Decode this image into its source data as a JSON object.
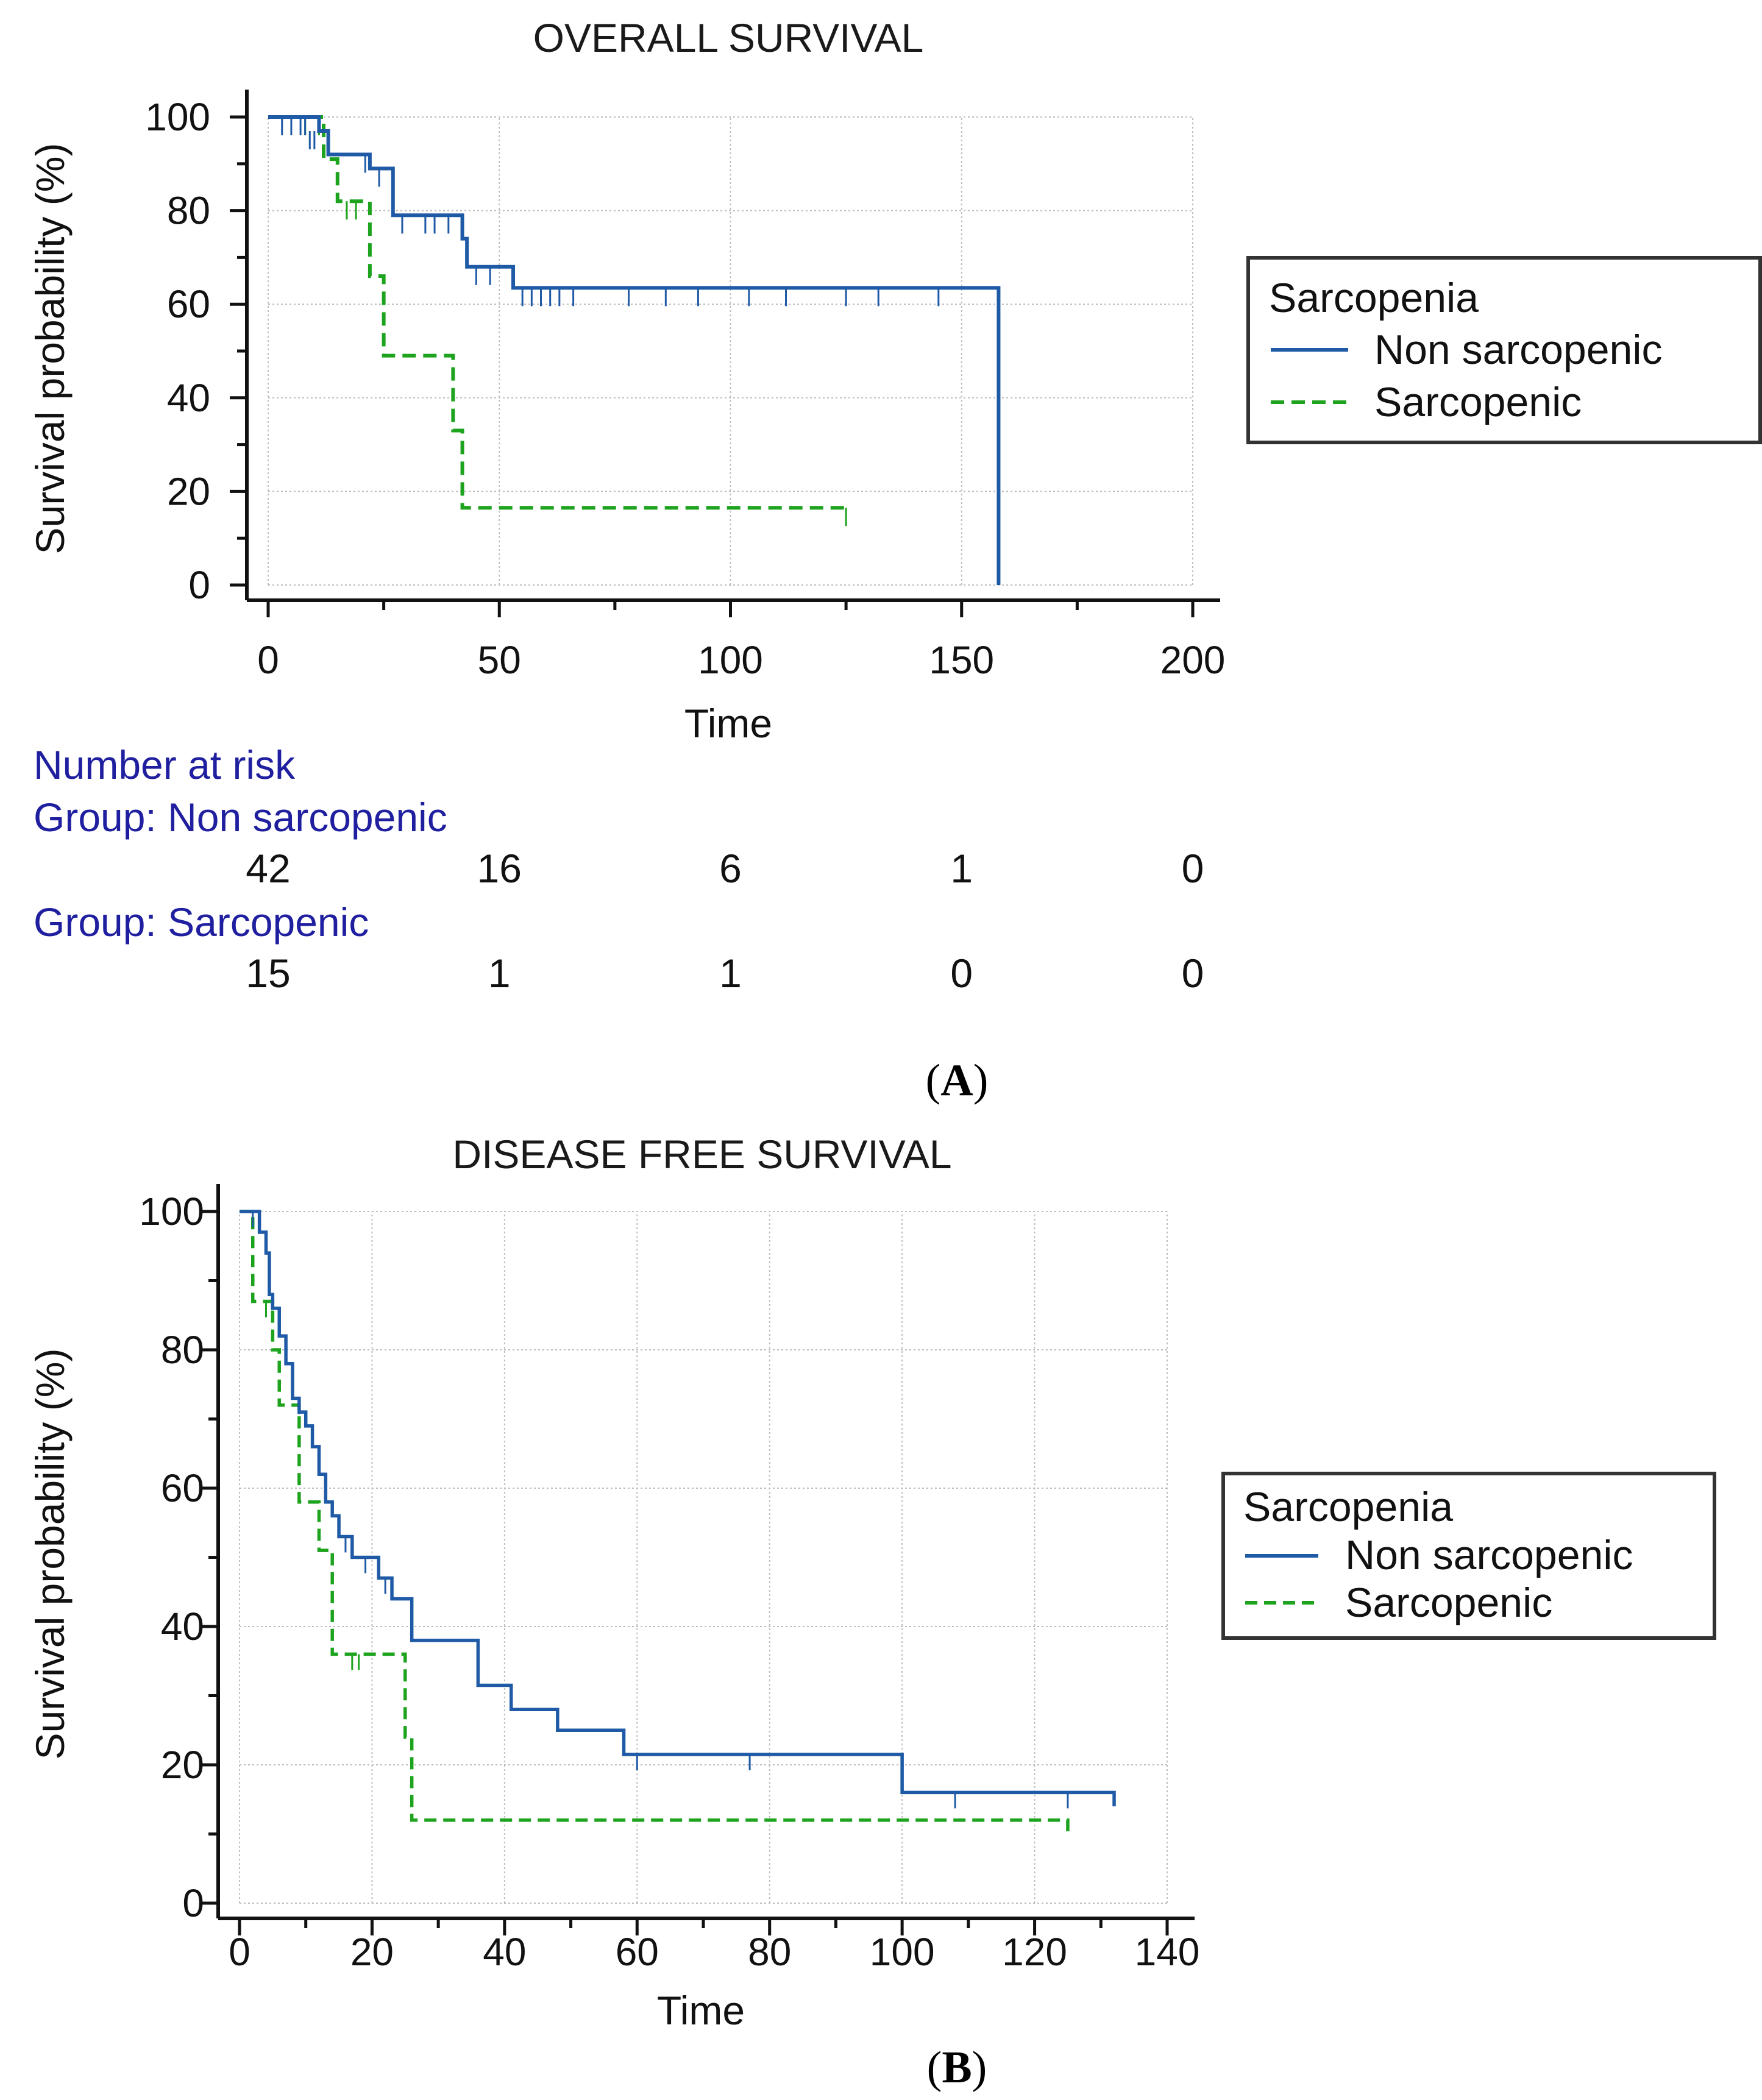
{
  "colors": {
    "non_sarcopenic": "#1f5aa6",
    "sarcopenic": "#1ea31e",
    "grid": "#bdbdbd",
    "axis": "#111111",
    "risk_text": "#1f1fa0"
  },
  "chart_data": [
    {
      "type": "line",
      "panel": "A",
      "title": "OVERALL SURVIVAL",
      "xlabel": "Time",
      "ylabel": "Survival probability (%)",
      "xlim": [
        0,
        200
      ],
      "ylim": [
        0,
        100
      ],
      "xticks": [
        0,
        50,
        100,
        150,
        200
      ],
      "yticks": [
        0,
        20,
        40,
        60,
        80,
        100
      ],
      "grid": true,
      "legend": {
        "title": "Sarcopenia",
        "position": "right",
        "entries": [
          "Non sarcopenic",
          "Sarcopenic"
        ]
      },
      "series": [
        {
          "name": "Non sarcopenic",
          "style": "solid",
          "steps": [
            [
              0,
              100
            ],
            [
              11,
              97
            ],
            [
              13,
              92
            ],
            [
              22,
              89
            ],
            [
              27,
              79
            ],
            [
              42,
              74
            ],
            [
              43,
              68
            ],
            [
              53,
              63.5
            ],
            [
              158,
              63.5
            ],
            [
              158,
              0
            ]
          ],
          "censored": [
            [
              3,
              100
            ],
            [
              5,
              100
            ],
            [
              7,
              100
            ],
            [
              8,
              100
            ],
            [
              9,
              97
            ],
            [
              10,
              97
            ],
            [
              21,
              92
            ],
            [
              24,
              89
            ],
            [
              29,
              79
            ],
            [
              34,
              79
            ],
            [
              36,
              79
            ],
            [
              39,
              79
            ],
            [
              45,
              68
            ],
            [
              48,
              68
            ],
            [
              55,
              63.5
            ],
            [
              57,
              63.5
            ],
            [
              59,
              63.5
            ],
            [
              61,
              63.5
            ],
            [
              63,
              63.5
            ],
            [
              66,
              63.5
            ],
            [
              78,
              63.5
            ],
            [
              86,
              63.5
            ],
            [
              93,
              63.5
            ],
            [
              104,
              63.5
            ],
            [
              112,
              63.5
            ],
            [
              125,
              63.5
            ],
            [
              132,
              63.5
            ],
            [
              145,
              63.5
            ]
          ]
        },
        {
          "name": "Sarcopenic",
          "style": "dashed",
          "steps": [
            [
              0,
              100
            ],
            [
              12,
              91
            ],
            [
              15,
              82
            ],
            [
              22,
              66
            ],
            [
              25,
              49
            ],
            [
              40,
              33
            ],
            [
              42,
              16.5
            ],
            [
              125,
              16.5
            ]
          ],
          "censored": [
            [
              8,
              100
            ],
            [
              11,
              100
            ],
            [
              17,
              82
            ],
            [
              19,
              82
            ],
            [
              125,
              16.5
            ]
          ]
        }
      ],
      "number_at_risk": {
        "title": "Number at risk",
        "times": [
          0,
          50,
          100,
          150,
          200
        ],
        "groups": [
          {
            "label": "Group: Non sarcopenic",
            "counts": [
              "42",
              "16",
              "6",
              "1",
              "0"
            ]
          },
          {
            "label": "Group: Sarcopenic",
            "counts": [
              "15",
              "1",
              "1",
              "0",
              "0"
            ]
          }
        ]
      }
    },
    {
      "type": "line",
      "panel": "B",
      "title": "DISEASE FREE SURVIVAL",
      "xlabel": "Time",
      "ylabel": "Survival probability (%)",
      "xlim": [
        0,
        140
      ],
      "ylim": [
        0,
        100
      ],
      "xticks": [
        0,
        20,
        40,
        60,
        80,
        100,
        120,
        140
      ],
      "yticks": [
        0,
        20,
        40,
        60,
        80,
        100
      ],
      "grid": true,
      "legend": {
        "title": "Sarcopenia",
        "position": "right",
        "entries": [
          "Non sarcopenic",
          "Sarcopenic"
        ]
      },
      "series": [
        {
          "name": "Non sarcopenic",
          "style": "solid",
          "steps": [
            [
              0,
              100
            ],
            [
              3,
              97
            ],
            [
              4,
              94
            ],
            [
              4.5,
              88
            ],
            [
              5,
              86
            ],
            [
              6,
              82
            ],
            [
              7,
              78
            ],
            [
              8,
              73
            ],
            [
              9,
              71
            ],
            [
              10,
              69
            ],
            [
              11,
              66
            ],
            [
              12,
              62
            ],
            [
              13,
              58
            ],
            [
              14,
              56
            ],
            [
              15,
              53
            ],
            [
              17,
              50
            ],
            [
              21,
              47
            ],
            [
              23,
              44
            ],
            [
              26,
              38
            ],
            [
              36,
              31.5
            ],
            [
              41,
              28
            ],
            [
              48,
              25
            ],
            [
              58,
              21.5
            ],
            [
              100,
              16
            ],
            [
              132,
              16
            ],
            [
              132,
              14
            ]
          ],
          "censored": [
            [
              2,
              100
            ],
            [
              9,
              73
            ],
            [
              16,
              53
            ],
            [
              19,
              50
            ],
            [
              22,
              47
            ],
            [
              60,
              21.5
            ],
            [
              77,
              21.5
            ],
            [
              108,
              16
            ],
            [
              125,
              16
            ]
          ]
        },
        {
          "name": "Sarcopenic",
          "style": "dashed",
          "steps": [
            [
              0,
              100
            ],
            [
              2,
              87
            ],
            [
              5,
              80
            ],
            [
              6,
              72
            ],
            [
              9,
              58
            ],
            [
              12,
              51
            ],
            [
              14,
              36
            ],
            [
              25,
              24
            ],
            [
              26,
              12
            ],
            [
              125,
              12
            ],
            [
              125,
              10
            ]
          ],
          "censored": [
            [
              4,
              87
            ],
            [
              17,
              36
            ],
            [
              18,
              36
            ]
          ]
        }
      ]
    }
  ],
  "panel_labels": {
    "a": {
      "open": "(",
      "letter": "A",
      "close": ")"
    },
    "b": {
      "open": "(",
      "letter": "B",
      "close": ")"
    }
  }
}
